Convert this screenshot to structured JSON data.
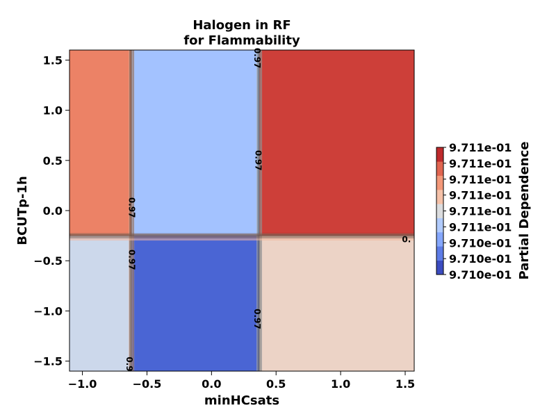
{
  "chart_data": {
    "type": "heatmap",
    "title": [
      "Halogen in RF",
      "for Flammability"
    ],
    "xlabel": "minHCsats",
    "ylabel": "BCUTp-1h",
    "xlim": [
      -1.1,
      1.57
    ],
    "ylim": [
      -1.6,
      1.6
    ],
    "xticks": [
      -1.0,
      -0.5,
      0.0,
      0.5,
      1.0,
      1.5
    ],
    "xtick_labels": [
      "−1.0",
      "−0.5",
      "0.0",
      "0.5",
      "1.0",
      "1.5"
    ],
    "yticks": [
      -1.5,
      -1.0,
      -0.5,
      0.0,
      0.5,
      1.0,
      1.5
    ],
    "ytick_labels": [
      "−1.5",
      "−1.0",
      "−0.5",
      "0.0",
      "0.5",
      "1.0",
      "1.5"
    ],
    "x_breaks": [
      -0.62,
      0.37
    ],
    "y_breaks": [
      -0.25
    ],
    "regions": [
      {
        "x": [
          -1.1,
          -0.62
        ],
        "y": [
          -0.25,
          1.6
        ],
        "level": 6,
        "color": "#ec8266"
      },
      {
        "x": [
          -0.62,
          0.37
        ],
        "y": [
          -0.25,
          1.6
        ],
        "level": 2,
        "color": "#a3c2ff"
      },
      {
        "x": [
          0.37,
          1.57
        ],
        "y": [
          -0.25,
          1.6
        ],
        "level": 7,
        "color": "#cd3f39"
      },
      {
        "x": [
          -1.1,
          -0.62
        ],
        "y": [
          -1.6,
          -0.25
        ],
        "level": 3,
        "color": "#ccd8eb"
      },
      {
        "x": [
          -0.62,
          0.37
        ],
        "y": [
          -1.6,
          -0.25
        ],
        "level": 0,
        "color": "#4a65d4"
      },
      {
        "x": [
          0.37,
          1.57
        ],
        "y": [
          -1.6,
          -0.25
        ],
        "level": 4,
        "color": "#ecd3c6"
      }
    ],
    "contour_labels": [
      {
        "text": "0.97",
        "x": -0.62,
        "y": 0.03
      },
      {
        "text": "0.97",
        "x": -0.62,
        "y": -0.49
      },
      {
        "text": "0.9",
        "x": -0.64,
        "y": -1.53
      },
      {
        "text": "0.97",
        "x": 0.35,
        "y": 1.52
      },
      {
        "text": "0.97",
        "x": 0.36,
        "y": 0.5
      },
      {
        "text": "0.97",
        "x": 0.35,
        "y": -1.08
      },
      {
        "text": "0.",
        "x": 1.51,
        "y": -0.29
      }
    ],
    "colorbar": {
      "label": "Partial Dependence",
      "colors": [
        "#3b4cc0",
        "#5d7ce6",
        "#85a7fc",
        "#b1cbfc",
        "#dbdcde",
        "#f5c1a8",
        "#f39879",
        "#e06550",
        "#be2a2c"
      ],
      "tick_labels": [
        "9.710e-01",
        "9.710e-01",
        "9.710e-01",
        "9.711e-01",
        "9.711e-01",
        "9.711e-01",
        "9.711e-01",
        "9.711e-01",
        "9.711e-01"
      ]
    }
  }
}
